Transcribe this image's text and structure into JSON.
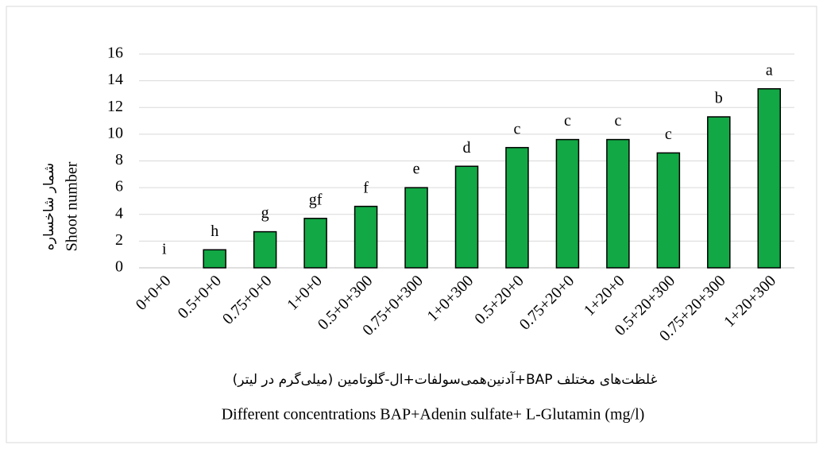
{
  "chart_data": {
    "type": "bar",
    "y_title_lines": [
      "شمار شاخساره",
      "Shoot number"
    ],
    "x_title_lines": [
      "غلظت‌های مختلف BAP+آدنین‌همی‌سولفات+ال-گلوتامین (میلی‌گرم در لیتر)",
      "Different concentrations BAP+Adenin sulfate+ L-Glutamin (mg/l)"
    ],
    "categories": [
      "0+0+0",
      "0.5+0+0",
      "0.75+0+0",
      "1+0+0",
      "0.5+0+300",
      "0.75+0+300",
      "1+0+300",
      "0.5+20+0",
      "0.75+20+0",
      "1+20+0",
      "0.5+20+300",
      "0.75+20+300",
      "1+20+300"
    ],
    "values": [
      0,
      1.35,
      2.7,
      3.7,
      4.6,
      6.0,
      7.6,
      9.0,
      9.6,
      9.6,
      8.6,
      11.3,
      13.4
    ],
    "significance_letters": [
      "i",
      "h",
      "g",
      "gf",
      "f",
      "e",
      "d",
      "c",
      "c",
      "c",
      "c",
      "b",
      "a"
    ],
    "color": "#12a845",
    "ylim": [
      0,
      16
    ],
    "yticks": [
      0,
      2,
      4,
      6,
      8,
      10,
      12,
      14,
      16
    ],
    "grid": true
  }
}
